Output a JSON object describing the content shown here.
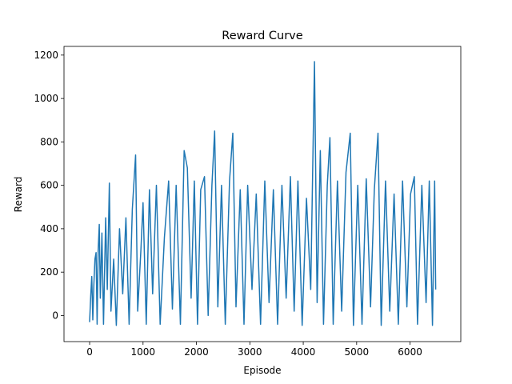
{
  "chart_data": {
    "type": "line",
    "title": "Reward Curve",
    "xlabel": "Episode",
    "ylabel": "Reward",
    "xlim": [
      -480,
      6950
    ],
    "ylim": [
      -120,
      1240
    ],
    "xticks": [
      0,
      1000,
      2000,
      3000,
      4000,
      5000,
      6000
    ],
    "yticks": [
      0,
      200,
      400,
      600,
      800,
      1000,
      1200
    ],
    "grid": false,
    "legend": "none",
    "colors": {
      "line": "#1f77b4"
    },
    "series": [
      {
        "points": [
          [
            0,
            -30
          ],
          [
            20,
            90
          ],
          [
            40,
            180
          ],
          [
            60,
            -20
          ],
          [
            80,
            150
          ],
          [
            100,
            260
          ],
          [
            120,
            290
          ],
          [
            140,
            -40
          ],
          [
            160,
            300
          ],
          [
            180,
            420
          ],
          [
            200,
            80
          ],
          [
            230,
            380
          ],
          [
            260,
            -40
          ],
          [
            300,
            450
          ],
          [
            330,
            120
          ],
          [
            370,
            610
          ],
          [
            400,
            20
          ],
          [
            450,
            260
          ],
          [
            500,
            -45
          ],
          [
            560,
            400
          ],
          [
            620,
            100
          ],
          [
            680,
            450
          ],
          [
            740,
            -40
          ],
          [
            800,
            490
          ],
          [
            860,
            740
          ],
          [
            900,
            20
          ],
          [
            960,
            300
          ],
          [
            1000,
            520
          ],
          [
            1060,
            -40
          ],
          [
            1120,
            580
          ],
          [
            1180,
            100
          ],
          [
            1250,
            600
          ],
          [
            1320,
            -40
          ],
          [
            1400,
            360
          ],
          [
            1480,
            620
          ],
          [
            1550,
            30
          ],
          [
            1620,
            600
          ],
          [
            1700,
            -40
          ],
          [
            1770,
            760
          ],
          [
            1830,
            680
          ],
          [
            1900,
            80
          ],
          [
            1960,
            620
          ],
          [
            2020,
            -40
          ],
          [
            2080,
            580
          ],
          [
            2150,
            640
          ],
          [
            2220,
            0
          ],
          [
            2290,
            600
          ],
          [
            2340,
            850
          ],
          [
            2400,
            40
          ],
          [
            2470,
            600
          ],
          [
            2540,
            -40
          ],
          [
            2620,
            620
          ],
          [
            2680,
            840
          ],
          [
            2740,
            40
          ],
          [
            2820,
            580
          ],
          [
            2890,
            -40
          ],
          [
            2960,
            600
          ],
          [
            3040,
            120
          ],
          [
            3120,
            560
          ],
          [
            3200,
            -40
          ],
          [
            3280,
            620
          ],
          [
            3360,
            60
          ],
          [
            3440,
            580
          ],
          [
            3520,
            -40
          ],
          [
            3600,
            600
          ],
          [
            3680,
            80
          ],
          [
            3760,
            640
          ],
          [
            3830,
            20
          ],
          [
            3900,
            620
          ],
          [
            3980,
            -45
          ],
          [
            4060,
            540
          ],
          [
            4140,
            120
          ],
          [
            4210,
            1170
          ],
          [
            4260,
            60
          ],
          [
            4320,
            760
          ],
          [
            4380,
            -40
          ],
          [
            4450,
            600
          ],
          [
            4500,
            820
          ],
          [
            4560,
            -40
          ],
          [
            4640,
            620
          ],
          [
            4720,
            20
          ],
          [
            4800,
            660
          ],
          [
            4880,
            840
          ],
          [
            4940,
            -45
          ],
          [
            5020,
            600
          ],
          [
            5100,
            -40
          ],
          [
            5180,
            630
          ],
          [
            5260,
            40
          ],
          [
            5330,
            580
          ],
          [
            5400,
            840
          ],
          [
            5460,
            -45
          ],
          [
            5540,
            620
          ],
          [
            5620,
            20
          ],
          [
            5700,
            560
          ],
          [
            5780,
            -40
          ],
          [
            5860,
            620
          ],
          [
            5940,
            40
          ],
          [
            6010,
            560
          ],
          [
            6080,
            640
          ],
          [
            6140,
            -40
          ],
          [
            6220,
            600
          ],
          [
            6300,
            60
          ],
          [
            6360,
            620
          ],
          [
            6420,
            -45
          ],
          [
            6460,
            620
          ],
          [
            6480,
            120
          ]
        ]
      }
    ]
  }
}
